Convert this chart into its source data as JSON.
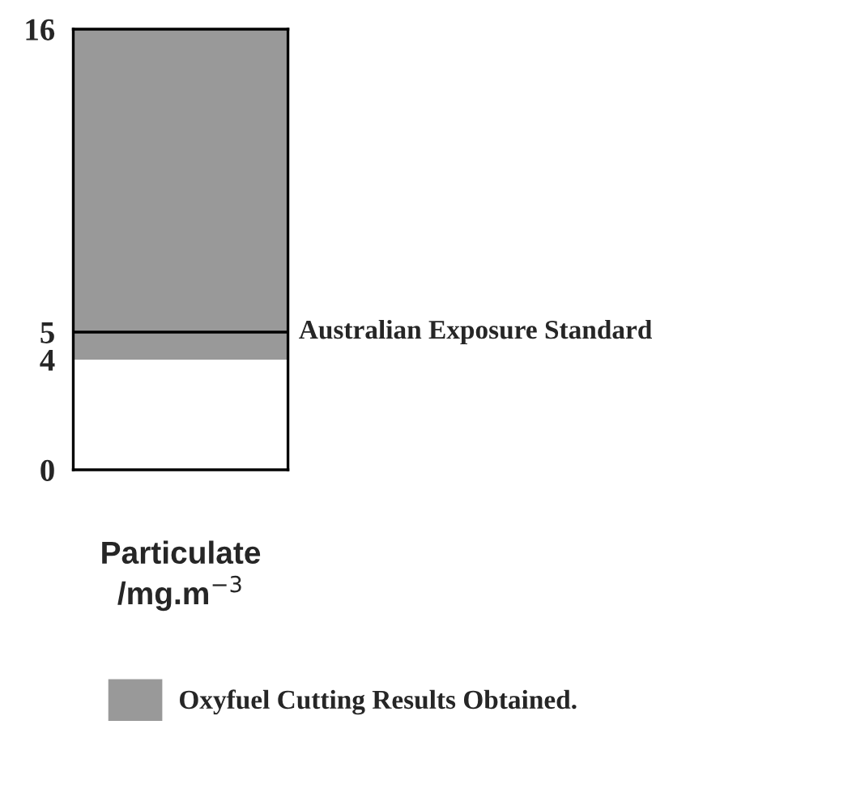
{
  "chart_data": {
    "type": "bar",
    "categories": [
      null
    ],
    "xlabel": "Particulate\n/mg.m$^{−3}$",
    "series": [
      {
        "name": "Oxyfuel Cutting Results Obtained.",
        "color": "#999999",
        "values": [
          12
        ],
        "base": [
          4
        ]
      }
    ],
    "ylim": [
      0,
      16
    ],
    "yticks": [
      0,
      4,
      5,
      16
    ],
    "ref_lines": [
      {
        "axis": "y",
        "value": 5,
        "label": "Australian Exposure Standard",
        "color": "#000000"
      }
    ],
    "legend": "bottom",
    "grid": false
  }
}
